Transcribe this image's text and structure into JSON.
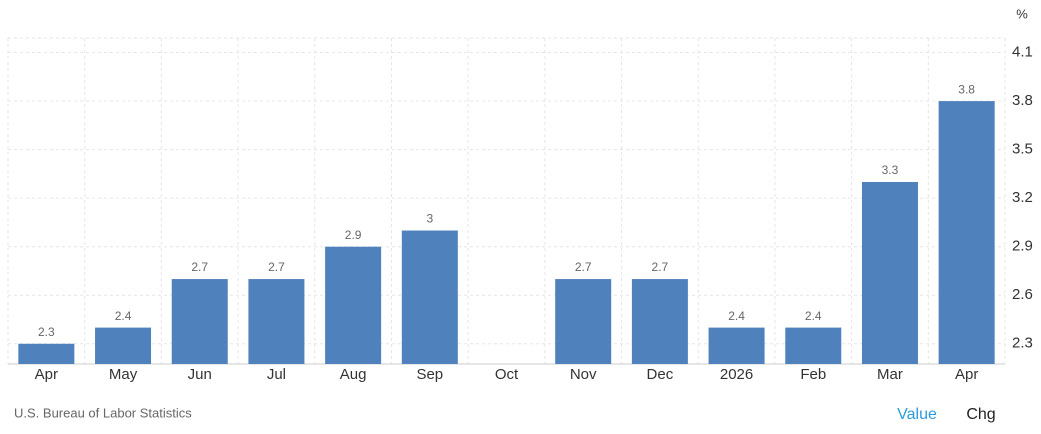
{
  "chart_data": {
    "type": "bar",
    "unit": "%",
    "source": "U.S. Bureau of Labor Statistics",
    "buttons": [
      "Value",
      "Chg"
    ],
    "categories": [
      "Apr",
      "May",
      "Jun",
      "Jul",
      "Aug",
      "Sep",
      "Oct",
      "Nov",
      "Dec",
      "2026",
      "Feb",
      "Mar",
      "Apr"
    ],
    "values": [
      2.3,
      2.4,
      2.7,
      2.7,
      2.9,
      3,
      null,
      2.7,
      2.7,
      2.4,
      2.4,
      3.3,
      3.8
    ],
    "color": "#4f81bd",
    "ylim": [
      2.175,
      4.19
    ],
    "yticks": [
      2.3,
      2.6,
      2.9,
      3.2,
      3.5,
      3.8,
      4.1
    ],
    "grid": true
  }
}
